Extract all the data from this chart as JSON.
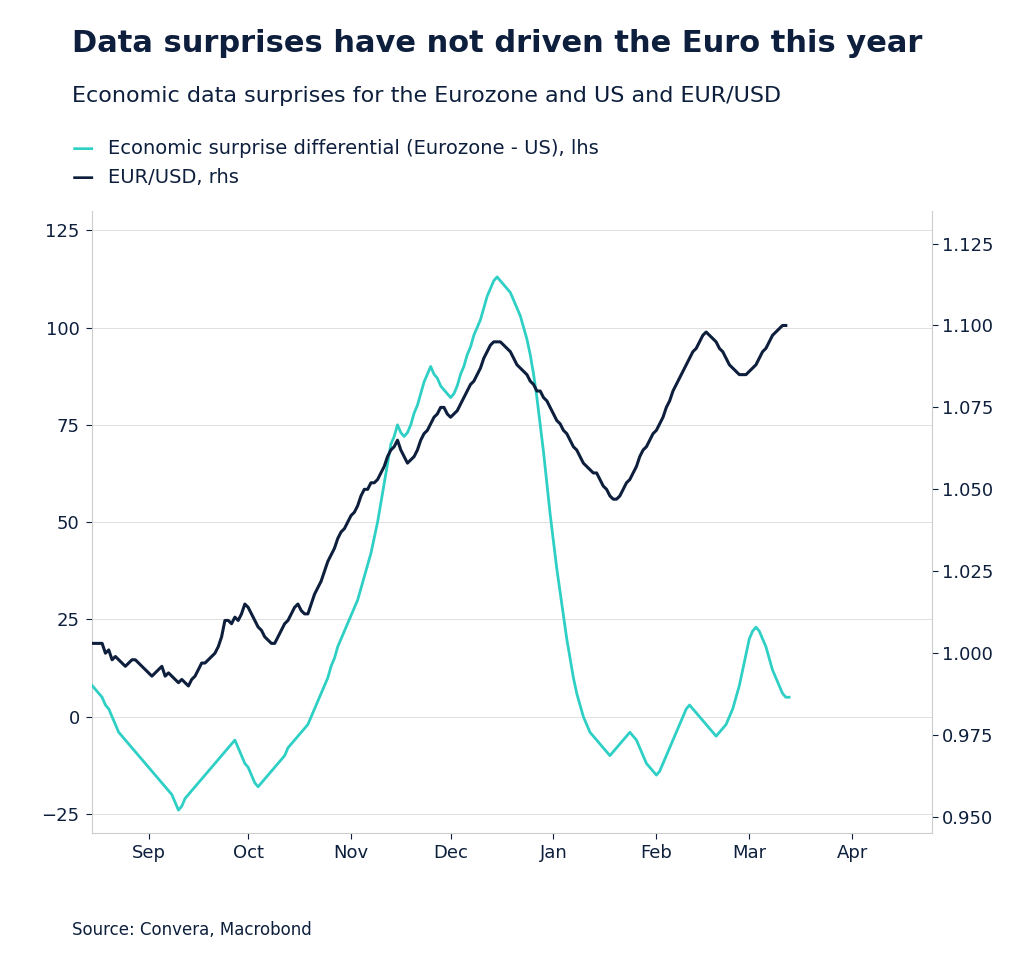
{
  "title": "Data surprises have not driven the Euro this year",
  "subtitle": "Economic data surprises for the Eurozone and US and EUR/USD",
  "legend_line1": "Economic surprise differential (Eurozone - US), lhs",
  "legend_line2": "EUR/USD, rhs",
  "source": "Source: Convera, Macrobond",
  "title_color": "#0d1f3c",
  "subtitle_color": "#0d1f3c",
  "teal_color": "#2ecfc4",
  "dark_color": "#0d1f3c",
  "background_color": "#ffffff",
  "lhs_ylim": [
    -30,
    130
  ],
  "lhs_yticks": [
    -25,
    0,
    25,
    50,
    75,
    100,
    125
  ],
  "rhs_ylim": [
    0.945,
    1.135
  ],
  "rhs_yticks": [
    0.95,
    0.975,
    1.0,
    1.025,
    1.05,
    1.075,
    1.1,
    1.125
  ],
  "eurusd_data": [
    1.003,
    1.003,
    1.003,
    1.003,
    1.0,
    1.001,
    0.998,
    0.999,
    0.998,
    0.997,
    0.996,
    0.997,
    0.998,
    0.998,
    0.997,
    0.996,
    0.995,
    0.994,
    0.993,
    0.994,
    0.995,
    0.996,
    0.993,
    0.994,
    0.993,
    0.992,
    0.991,
    0.992,
    0.991,
    0.99,
    0.992,
    0.993,
    0.995,
    0.997,
    0.997,
    0.998,
    0.999,
    1.0,
    1.002,
    1.005,
    1.01,
    1.01,
    1.009,
    1.011,
    1.01,
    1.012,
    1.015,
    1.014,
    1.012,
    1.01,
    1.008,
    1.007,
    1.005,
    1.004,
    1.003,
    1.003,
    1.005,
    1.007,
    1.009,
    1.01,
    1.012,
    1.014,
    1.015,
    1.013,
    1.012,
    1.012,
    1.015,
    1.018,
    1.02,
    1.022,
    1.025,
    1.028,
    1.03,
    1.032,
    1.035,
    1.037,
    1.038,
    1.04,
    1.042,
    1.043,
    1.045,
    1.048,
    1.05,
    1.05,
    1.052,
    1.052,
    1.053,
    1.055,
    1.057,
    1.06,
    1.062,
    1.063,
    1.065,
    1.062,
    1.06,
    1.058,
    1.059,
    1.06,
    1.062,
    1.065,
    1.067,
    1.068,
    1.07,
    1.072,
    1.073,
    1.075,
    1.075,
    1.073,
    1.072,
    1.073,
    1.074,
    1.076,
    1.078,
    1.08,
    1.082,
    1.083,
    1.085,
    1.087,
    1.09,
    1.092,
    1.094,
    1.095,
    1.095,
    1.095,
    1.094,
    1.093,
    1.092,
    1.09,
    1.088,
    1.087,
    1.086,
    1.085,
    1.083,
    1.082,
    1.08,
    1.08,
    1.078,
    1.077,
    1.075,
    1.073,
    1.071,
    1.07,
    1.068,
    1.067,
    1.065,
    1.063,
    1.062,
    1.06,
    1.058,
    1.057,
    1.056,
    1.055,
    1.055,
    1.053,
    1.051,
    1.05,
    1.048,
    1.047,
    1.047,
    1.048,
    1.05,
    1.052,
    1.053,
    1.055,
    1.057,
    1.06,
    1.062,
    1.063,
    1.065,
    1.067,
    1.068,
    1.07,
    1.072,
    1.075,
    1.077,
    1.08,
    1.082,
    1.084,
    1.086,
    1.088,
    1.09,
    1.092,
    1.093,
    1.095,
    1.097,
    1.098,
    1.097,
    1.096,
    1.095,
    1.093,
    1.092,
    1.09,
    1.088,
    1.087,
    1.086,
    1.085,
    1.085,
    1.085,
    1.086,
    1.087,
    1.088,
    1.09,
    1.092,
    1.093,
    1.095,
    1.097,
    1.098,
    1.099,
    1.1,
    1.1
  ],
  "surprise_data": [
    8,
    7,
    6,
    5,
    3,
    2,
    0,
    -2,
    -4,
    -5,
    -6,
    -7,
    -8,
    -9,
    -10,
    -11,
    -12,
    -13,
    -14,
    -15,
    -16,
    -17,
    -18,
    -19,
    -20,
    -22,
    -24,
    -23,
    -21,
    -20,
    -19,
    -18,
    -17,
    -16,
    -15,
    -14,
    -13,
    -12,
    -11,
    -10,
    -9,
    -8,
    -7,
    -6,
    -8,
    -10,
    -12,
    -13,
    -15,
    -17,
    -18,
    -17,
    -16,
    -15,
    -14,
    -13,
    -12,
    -11,
    -10,
    -8,
    -7,
    -6,
    -5,
    -4,
    -3,
    -2,
    0,
    2,
    4,
    6,
    8,
    10,
    13,
    15,
    18,
    20,
    22,
    24,
    26,
    28,
    30,
    33,
    36,
    39,
    42,
    46,
    50,
    55,
    60,
    65,
    70,
    72,
    75,
    73,
    72,
    73,
    75,
    78,
    80,
    83,
    86,
    88,
    90,
    88,
    87,
    85,
    84,
    83,
    82,
    83,
    85,
    88,
    90,
    93,
    95,
    98,
    100,
    102,
    105,
    108,
    110,
    112,
    113,
    112,
    111,
    110,
    109,
    107,
    105,
    103,
    100,
    97,
    93,
    88,
    82,
    75,
    68,
    60,
    52,
    45,
    38,
    32,
    26,
    20,
    15,
    10,
    6,
    3,
    0,
    -2,
    -4,
    -5,
    -6,
    -7,
    -8,
    -9,
    -10,
    -9,
    -8,
    -7,
    -6,
    -5,
    -4,
    -5,
    -6,
    -8,
    -10,
    -12,
    -13,
    -14,
    -15,
    -14,
    -12,
    -10,
    -8,
    -6,
    -4,
    -2,
    0,
    2,
    3,
    2,
    1,
    0,
    -1,
    -2,
    -3,
    -4,
    -5,
    -4,
    -3,
    -2,
    0,
    2,
    5,
    8,
    12,
    16,
    20,
    22,
    23,
    22,
    20,
    18,
    15,
    12,
    10,
    8,
    6,
    5,
    5
  ]
}
